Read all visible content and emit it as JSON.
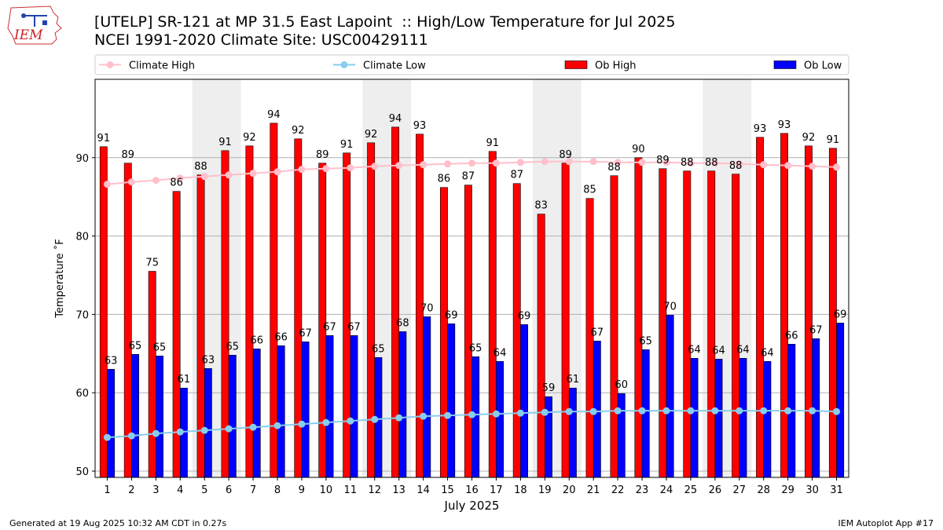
{
  "header": {
    "logo_text": "IEM",
    "title_line1": "[UTELP] SR-121 at MP 31.5 East Lapoint  :: High/Low Temperature for Jul 2025",
    "title_line2": "NCEI 1991-2020 Climate Site: USC00429111"
  },
  "footer": {
    "left": "Generated at 19 Aug 2025 10:32 AM CDT in 0.27s",
    "right": "IEM Autoplot App #17"
  },
  "chart_data": {
    "type": "bar",
    "xlabel": "July 2025",
    "ylabel": "Temperature ˚F",
    "ylim": [
      49.2,
      100
    ],
    "yticks": [
      50,
      60,
      70,
      80,
      90
    ],
    "grid": "horizontal",
    "legend_position": "top",
    "weekend_shading": [
      [
        5,
        6
      ],
      [
        12,
        13
      ],
      [
        19,
        20
      ],
      [
        26,
        27
      ]
    ],
    "categories": [
      "1",
      "2",
      "3",
      "4",
      "5",
      "6",
      "7",
      "8",
      "9",
      "10",
      "11",
      "12",
      "13",
      "14",
      "15",
      "16",
      "17",
      "18",
      "19",
      "20",
      "21",
      "22",
      "23",
      "24",
      "25",
      "26",
      "27",
      "28",
      "29",
      "30",
      "31"
    ],
    "series": [
      {
        "name": "Climate High",
        "kind": "line",
        "color": "#ffc0cb",
        "values": [
          86.6,
          86.9,
          87.1,
          87.4,
          87.6,
          87.8,
          88.0,
          88.2,
          88.5,
          88.6,
          88.7,
          88.9,
          89.0,
          89.1,
          89.2,
          89.3,
          89.3,
          89.4,
          89.5,
          89.5,
          89.5,
          89.4,
          89.4,
          89.4,
          89.3,
          89.3,
          89.2,
          89.1,
          89.0,
          88.9,
          88.8
        ]
      },
      {
        "name": "Climate Low",
        "kind": "line",
        "color": "#87ceeb",
        "values": [
          54.3,
          54.5,
          54.8,
          55.0,
          55.2,
          55.4,
          55.6,
          55.8,
          56.0,
          56.2,
          56.4,
          56.6,
          56.8,
          57.0,
          57.1,
          57.2,
          57.3,
          57.4,
          57.5,
          57.6,
          57.6,
          57.7,
          57.7,
          57.7,
          57.7,
          57.7,
          57.7,
          57.7,
          57.7,
          57.7,
          57.6
        ]
      },
      {
        "name": "Ob High",
        "kind": "bar",
        "color": "#ff0000",
        "values": [
          91,
          89,
          75,
          86,
          88,
          91,
          92,
          94,
          92,
          89,
          91,
          92,
          94,
          93,
          86,
          87,
          91,
          87,
          83,
          89,
          85,
          88,
          90,
          89,
          88,
          88,
          88,
          93,
          93,
          92,
          91
        ],
        "bar_values": [
          91.4,
          89.3,
          75.5,
          85.7,
          87.8,
          90.9,
          91.5,
          94.4,
          92.4,
          89.3,
          90.6,
          91.9,
          93.9,
          93.0,
          86.2,
          86.5,
          90.8,
          86.7,
          82.8,
          89.3,
          84.8,
          87.7,
          90.0,
          88.6,
          88.3,
          88.3,
          87.9,
          92.6,
          93.1,
          91.5,
          91.2
        ]
      },
      {
        "name": "Ob Low",
        "kind": "bar",
        "color": "#0000ff",
        "values": [
          63,
          65,
          65,
          61,
          63,
          65,
          66,
          66,
          67,
          67,
          67,
          65,
          68,
          70,
          69,
          65,
          64,
          69,
          59,
          61,
          67,
          60,
          65,
          70,
          64,
          64,
          64,
          64,
          66,
          67,
          69
        ],
        "bar_values": [
          63.0,
          64.9,
          64.7,
          60.6,
          63.1,
          64.8,
          65.6,
          66.0,
          66.5,
          67.3,
          67.3,
          64.5,
          67.8,
          69.7,
          68.8,
          64.6,
          64.0,
          68.7,
          59.5,
          60.6,
          66.6,
          59.9,
          65.5,
          69.9,
          64.4,
          64.3,
          64.4,
          64.0,
          66.2,
          66.9,
          68.9
        ]
      }
    ]
  }
}
